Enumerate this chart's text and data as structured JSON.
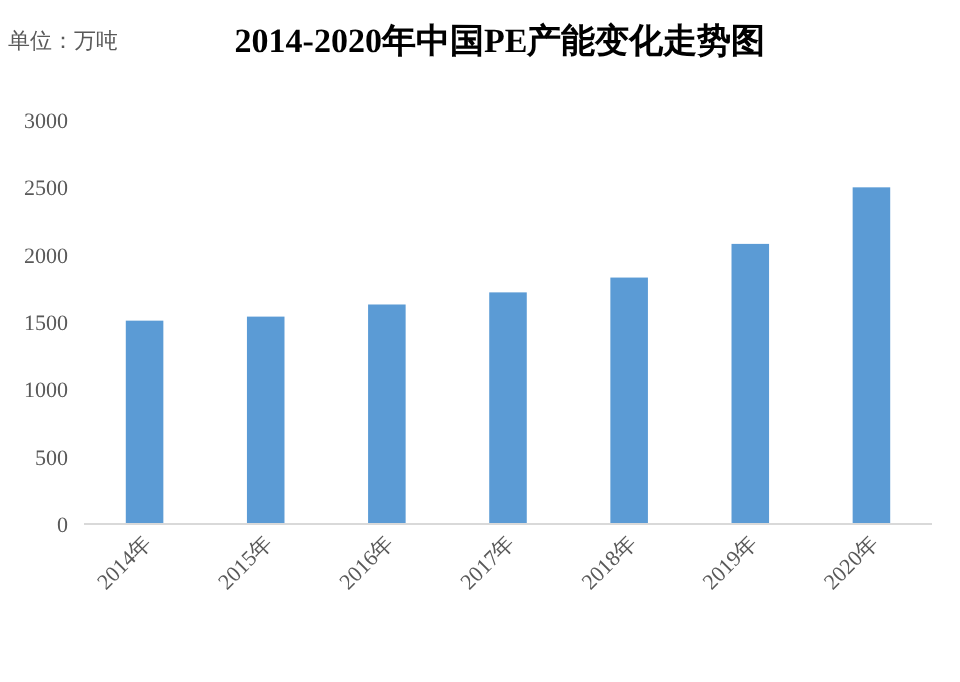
{
  "chart_data": {
    "type": "bar",
    "title": "2014-2020年中国PE产能变化走势图",
    "ylabel": "单位：万吨",
    "categories": [
      "2014年",
      "2015年",
      "2016年",
      "2017年",
      "2018年",
      "2019年",
      "2020年"
    ],
    "values": [
      1510,
      1540,
      1630,
      1720,
      1830,
      2080,
      2500
    ],
    "color": "#5b9bd5",
    "ylim": [
      0,
      3000
    ],
    "yticks": [
      0,
      500,
      1000,
      1500,
      2000,
      2500,
      3000
    ],
    "grid": false
  }
}
